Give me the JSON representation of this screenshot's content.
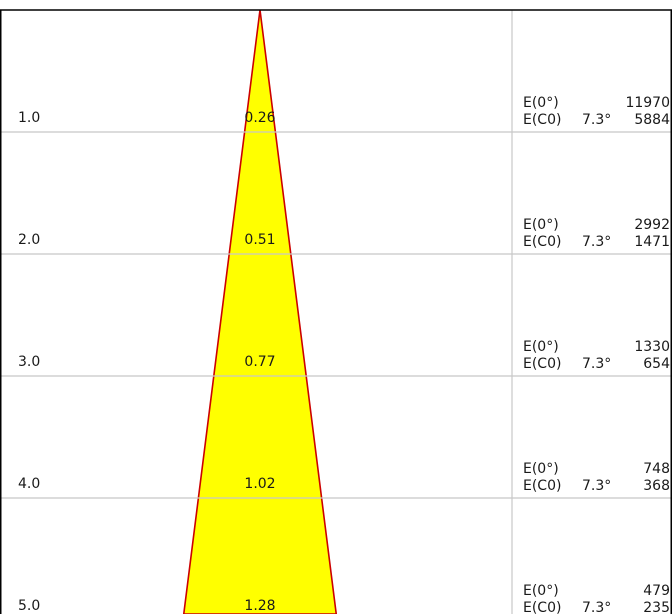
{
  "diagram": {
    "cone_fill": "#ffff00",
    "cone_stroke": "#cc0000",
    "frame_color": "#000000",
    "grid_color": "#c8c8c8",
    "rows": [
      {
        "distance": "1.0",
        "diameter": "0.26",
        "e0_label": "E(0°)",
        "e0_value": "11970",
        "ec0_label": "E(C0)",
        "ec0_angle": "7.3°",
        "ec0_value": "5884"
      },
      {
        "distance": "2.0",
        "diameter": "0.51",
        "e0_label": "E(0°)",
        "e0_value": "2992",
        "ec0_label": "E(C0)",
        "ec0_angle": "7.3°",
        "ec0_value": "1471"
      },
      {
        "distance": "3.0",
        "diameter": "0.77",
        "e0_label": "E(0°)",
        "e0_value": "1330",
        "ec0_label": "E(C0)",
        "ec0_angle": "7.3°",
        "ec0_value": "654"
      },
      {
        "distance": "4.0",
        "diameter": "1.02",
        "e0_label": "E(0°)",
        "e0_value": "748",
        "ec0_label": "E(C0)",
        "ec0_angle": "7.3°",
        "ec0_value": "368"
      },
      {
        "distance": "5.0",
        "diameter": "1.28",
        "e0_label": "E(0°)",
        "e0_value": "479",
        "ec0_label": "E(C0)",
        "ec0_angle": "7.3°",
        "ec0_value": "235"
      }
    ]
  }
}
